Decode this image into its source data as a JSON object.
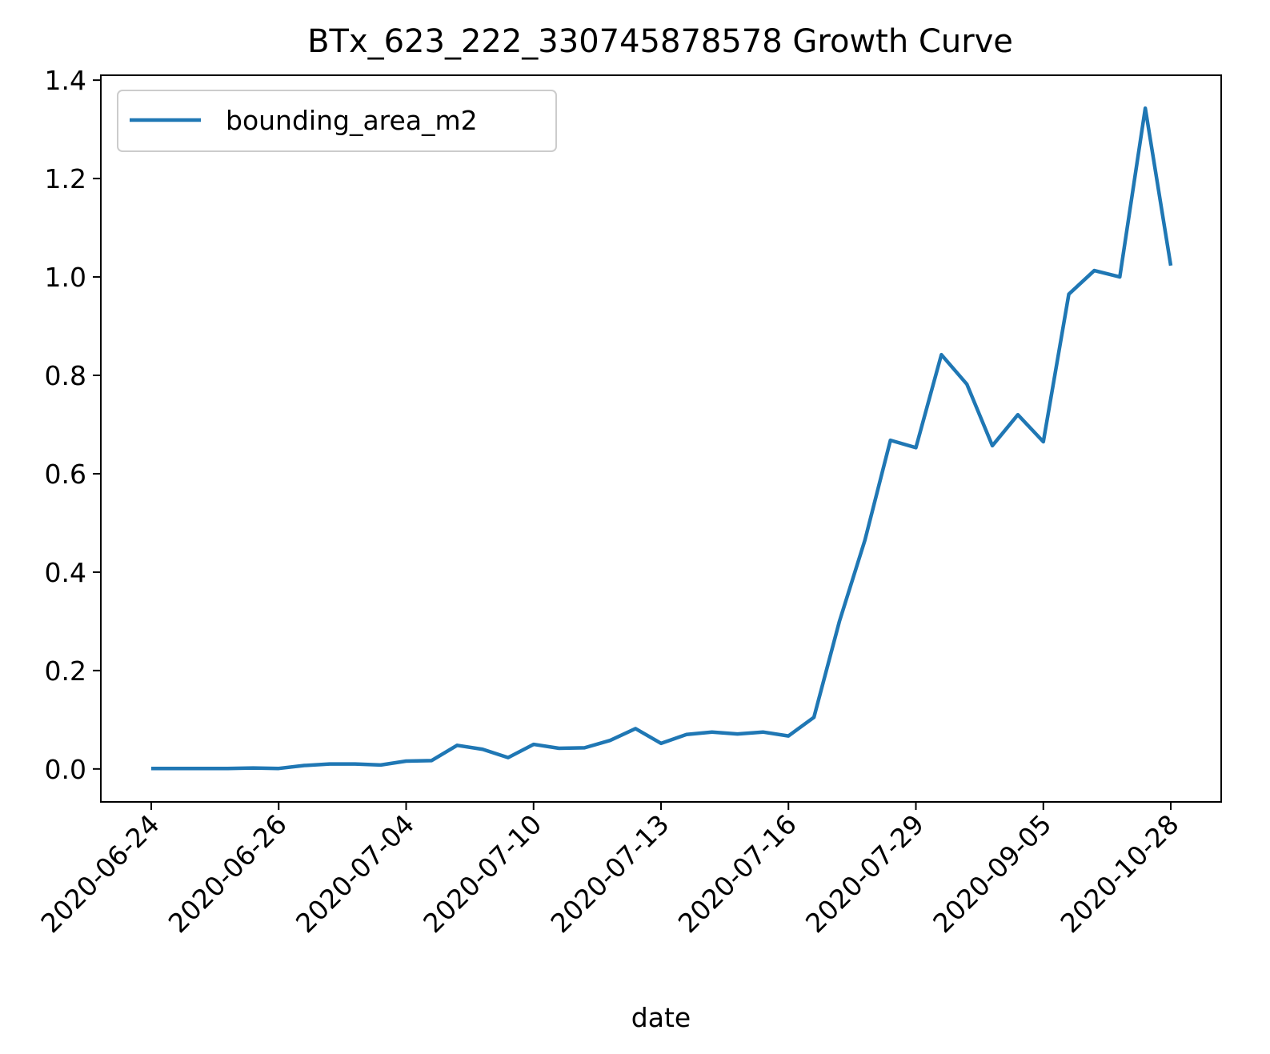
{
  "chart_data": {
    "type": "line",
    "title": "BTx_623_222_330745878578 Growth Curve",
    "xlabel": "date",
    "ylabel": "",
    "ylim": [
      -0.067,
      1.41
    ],
    "yticks": [
      "0.0",
      "0.2",
      "0.4",
      "0.6",
      "0.8",
      "1.0",
      "1.2",
      "1.4"
    ],
    "ytick_values": [
      0.0,
      0.2,
      0.4,
      0.6,
      0.8,
      1.0,
      1.2,
      1.4
    ],
    "xtick_labels": [
      "2020-06-24",
      "2020-06-26",
      "2020-07-04",
      "2020-07-10",
      "2020-07-13",
      "2020-07-16",
      "2020-07-29",
      "2020-09-05",
      "2020-10-28"
    ],
    "xtick_positions": [
      0,
      5,
      10,
      15,
      20,
      25,
      30,
      35,
      40
    ],
    "legend_position": "top-left",
    "grid": false,
    "series": [
      {
        "name": "bounding_area_m2",
        "color": "#1f77b4",
        "x": [
          0,
          1,
          2,
          3,
          4,
          5,
          6,
          7,
          8,
          9,
          10,
          11,
          12,
          13,
          14,
          15,
          16,
          17,
          18,
          19,
          20,
          21,
          22,
          23,
          24,
          25,
          26,
          27,
          28,
          29,
          30,
          31,
          32,
          33,
          34,
          35,
          36,
          37,
          38,
          39,
          40
        ],
        "values": [
          0.001,
          0.001,
          0.001,
          0.001,
          0.002,
          0.001,
          0.007,
          0.01,
          0.01,
          0.008,
          0.016,
          0.017,
          0.048,
          0.04,
          0.023,
          0.05,
          0.042,
          0.043,
          0.058,
          0.082,
          0.052,
          0.07,
          0.075,
          0.071,
          0.075,
          0.067,
          0.105,
          0.3,
          0.465,
          0.668,
          0.653,
          0.842,
          0.782,
          0.657,
          0.72,
          0.665,
          0.965,
          1.013,
          1.0,
          1.343,
          1.023
        ]
      }
    ]
  }
}
